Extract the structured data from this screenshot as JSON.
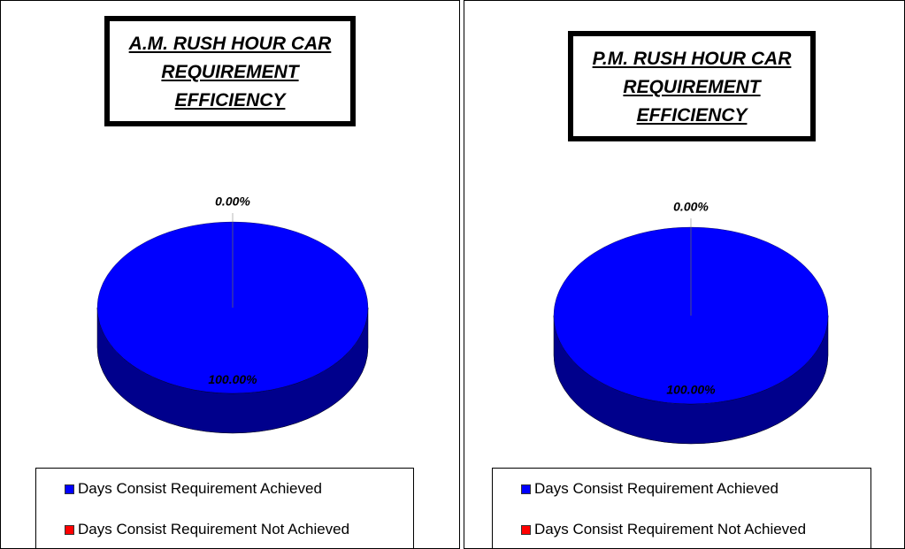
{
  "chart_data": [
    {
      "type": "pie",
      "title": "A.M. RUSH HOUR CAR REQUIREMENT EFFICIENCY",
      "categories": [
        "Days Consist Requirement Achieved",
        "Days Consist Requirement Not Achieved"
      ],
      "values": [
        100,
        0
      ],
      "value_labels": [
        "100.00%",
        "0.00%"
      ],
      "colors": [
        "#0000ff",
        "#ff0000"
      ]
    },
    {
      "type": "pie",
      "title": "P.M. RUSH HOUR CAR REQUIREMENT EFFICIENCY",
      "categories": [
        "Days Consist Requirement Achieved",
        "Days Consist Requirement Not Achieved"
      ],
      "values": [
        100,
        0
      ],
      "value_labels": [
        "100.00%",
        "0.00%"
      ],
      "colors": [
        "#0000ff",
        "#ff0000"
      ]
    }
  ]
}
